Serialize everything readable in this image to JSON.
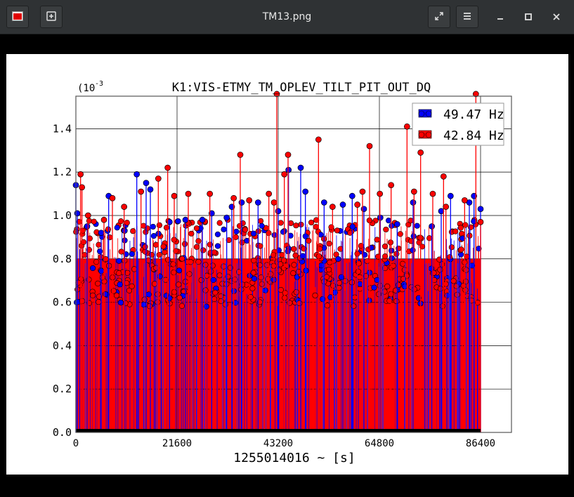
{
  "window": {
    "title": "TM13.png",
    "icons": {
      "app": "image-app-icon",
      "new": "new-window-icon",
      "fullscreen": "fullscreen-icon",
      "menu": "hamburger-menu-icon",
      "minimize": "minimize-icon",
      "maximize": "maximize-icon",
      "close": "close-icon"
    }
  },
  "chart_data": {
    "type": "scatter",
    "title": "K1:VIS-ETMY_TM_OPLEV_TILT_PIT_OUT_DQ",
    "xlabel": "1255014016 ~ [s]",
    "ylabel": "",
    "y_scale_label": "(10",
    "y_scale_exp": "-3",
    "xlim": [
      0,
      93000
    ],
    "ylim": [
      0,
      1.55
    ],
    "x_ticks": [
      0,
      21600,
      43200,
      64800,
      86400
    ],
    "x_tick_labels": [
      "0",
      "21600",
      "43200",
      "64800",
      "86400"
    ],
    "y_ticks": [
      0,
      0.2,
      0.4,
      0.6,
      0.8,
      1.0,
      1.2,
      1.4
    ],
    "y_tick_labels": [
      "0.0",
      "0.2",
      "0.4",
      "0.6",
      "0.8",
      "1.0",
      "1.2",
      "1.4"
    ],
    "grid": true,
    "legend_position": "top-right",
    "style": "stem plot with markers, dense samples",
    "series": [
      {
        "name": "49.47 Hz",
        "color": "#0000ff",
        "points": [
          [
            0,
            1.14
          ],
          [
            300,
            1.01
          ],
          [
            2400,
            0.95
          ],
          [
            5400,
            0.92
          ],
          [
            7000,
            1.09
          ],
          [
            10400,
            0.93
          ],
          [
            13000,
            1.19
          ],
          [
            15000,
            1.15
          ],
          [
            15900,
            1.12
          ],
          [
            20000,
            0.97
          ],
          [
            23400,
            0.98
          ],
          [
            27000,
            0.98
          ],
          [
            29000,
            1.01
          ],
          [
            32200,
            0.99
          ],
          [
            33300,
            1.04
          ],
          [
            35400,
            1.06
          ],
          [
            38900,
            1.06
          ],
          [
            43200,
            1.02
          ],
          [
            45400,
            1.21
          ],
          [
            48000,
            1.22
          ],
          [
            49000,
            1.11
          ],
          [
            53000,
            1.06
          ],
          [
            57000,
            1.05
          ],
          [
            59000,
            1.09
          ],
          [
            61500,
            1.03
          ],
          [
            65000,
            0.99
          ],
          [
            68600,
            0.96
          ],
          [
            72000,
            1.06
          ],
          [
            76000,
            0.95
          ],
          [
            78000,
            1.02
          ],
          [
            80000,
            1.09
          ],
          [
            84000,
            1.06
          ],
          [
            85000,
            1.09
          ],
          [
            86400,
            1.03
          ]
        ]
      },
      {
        "name": "42.84 Hz",
        "color": "#ff0000",
        "points": [
          [
            1000,
            1.19
          ],
          [
            1300,
            1.13
          ],
          [
            2600,
            1.0
          ],
          [
            6000,
            0.98
          ],
          [
            7800,
            1.08
          ],
          [
            10300,
            1.04
          ],
          [
            13900,
            1.11
          ],
          [
            17600,
            1.17
          ],
          [
            19600,
            1.22
          ],
          [
            21000,
            1.09
          ],
          [
            24000,
            1.1
          ],
          [
            28600,
            1.1
          ],
          [
            33700,
            1.08
          ],
          [
            35100,
            1.28
          ],
          [
            37000,
            1.07
          ],
          [
            41200,
            1.1
          ],
          [
            42300,
            1.06
          ],
          [
            42900,
            1.56
          ],
          [
            44500,
            1.19
          ],
          [
            45300,
            1.28
          ],
          [
            51800,
            1.35
          ],
          [
            54800,
            1.04
          ],
          [
            60100,
            1.05
          ],
          [
            61200,
            1.11
          ],
          [
            62700,
            1.32
          ],
          [
            64900,
            1.1
          ],
          [
            67300,
            1.14
          ],
          [
            70700,
            1.41
          ],
          [
            72200,
            1.11
          ],
          [
            73600,
            1.29
          ],
          [
            76200,
            1.1
          ],
          [
            78500,
            1.18
          ],
          [
            79000,
            1.04
          ],
          [
            83000,
            1.07
          ],
          [
            85400,
            1.56
          ],
          [
            86400,
            0.97
          ]
        ]
      }
    ]
  }
}
